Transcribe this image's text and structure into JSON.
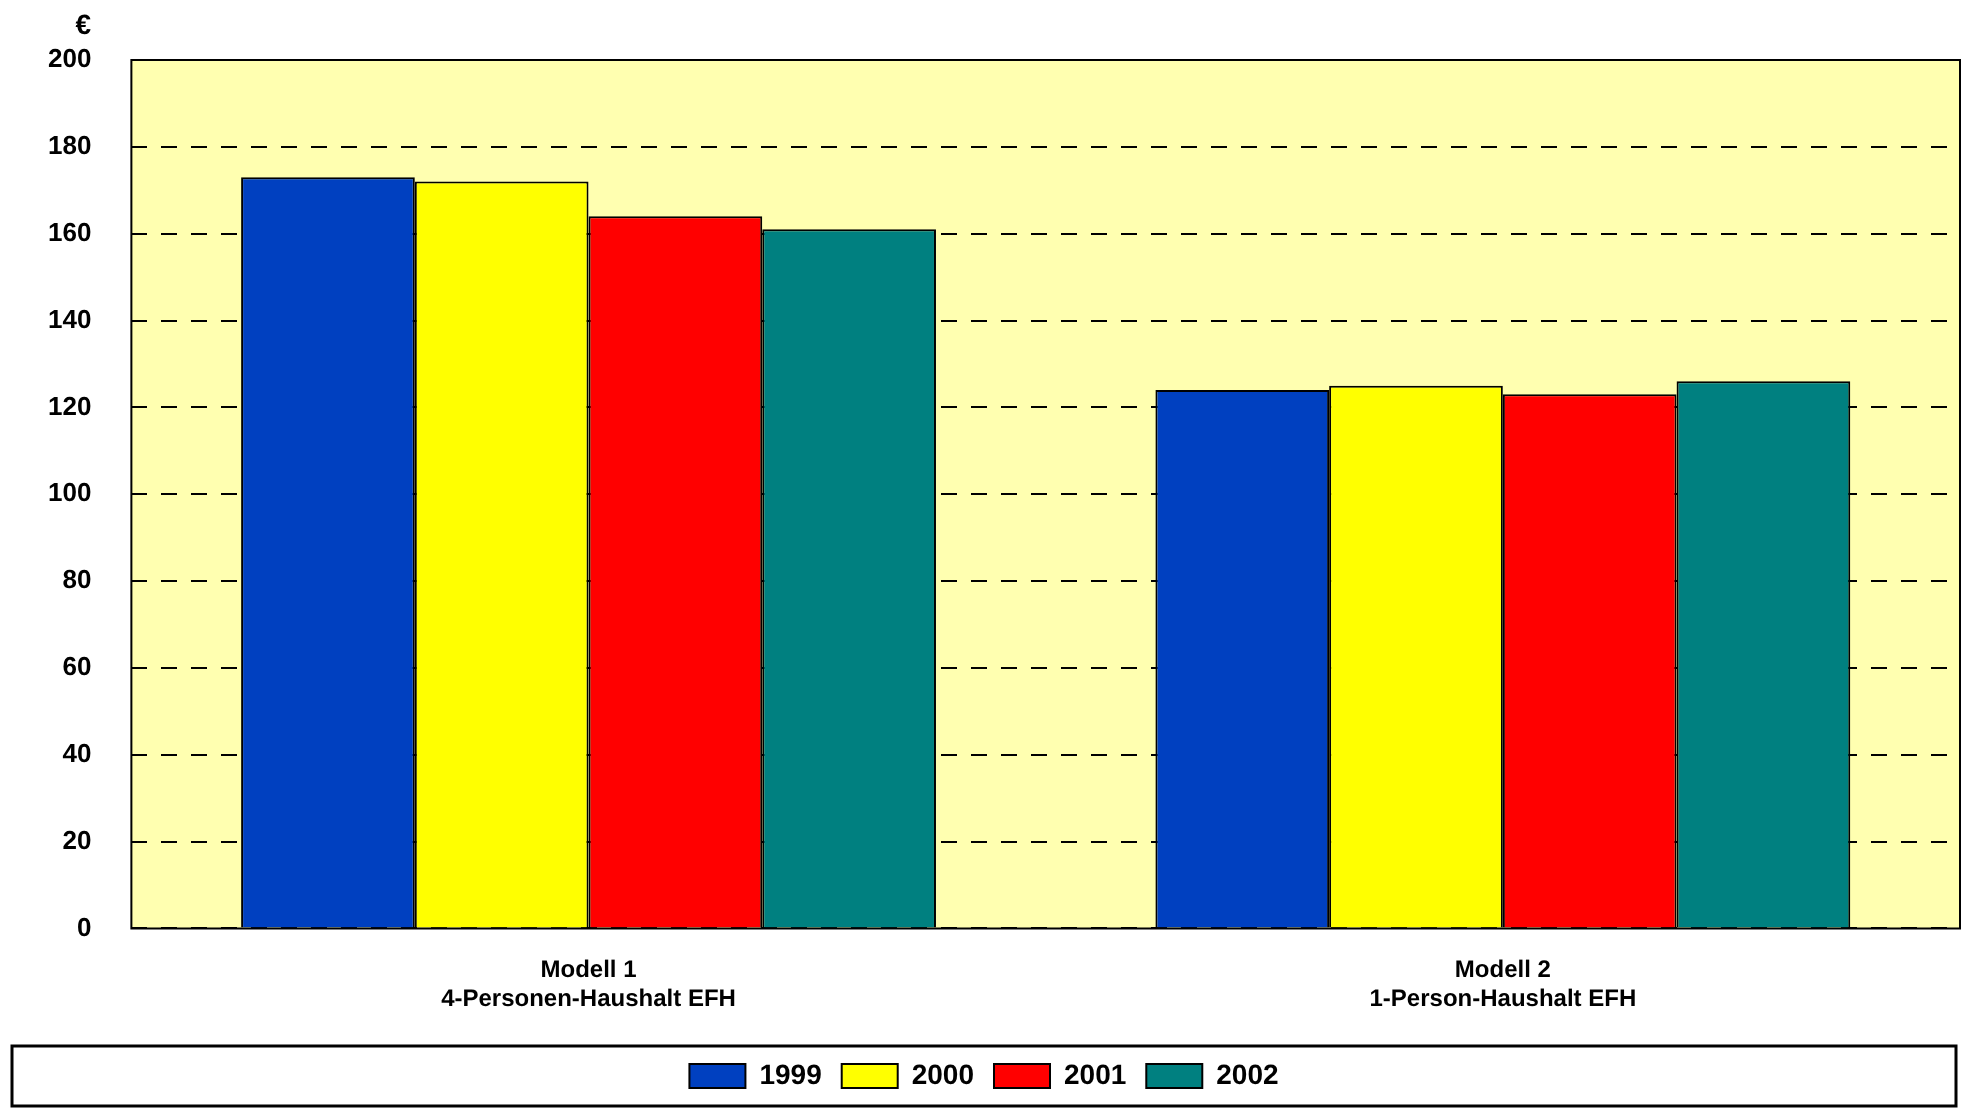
{
  "chart_data": {
    "type": "bar",
    "ylabel": "€",
    "categories": [
      "Modell 1\n4-Personen-Haushalt EFH",
      "Modell 2\n1-Person-Haushalt EFH"
    ],
    "series": [
      {
        "name": "1999",
        "color": "#0040c0",
        "values": [
          173,
          124
        ]
      },
      {
        "name": "2000",
        "color": "#ffff00",
        "values": [
          172,
          125
        ]
      },
      {
        "name": "2001",
        "color": "#ff0000",
        "values": [
          164,
          123
        ]
      },
      {
        "name": "2002",
        "color": "#008080",
        "values": [
          161,
          126
        ]
      }
    ],
    "ylim": [
      0,
      200
    ],
    "yticks": [
      0,
      20,
      40,
      60,
      80,
      100,
      120,
      140,
      160,
      180,
      200
    ],
    "grid": "y",
    "legend": "bottom"
  }
}
